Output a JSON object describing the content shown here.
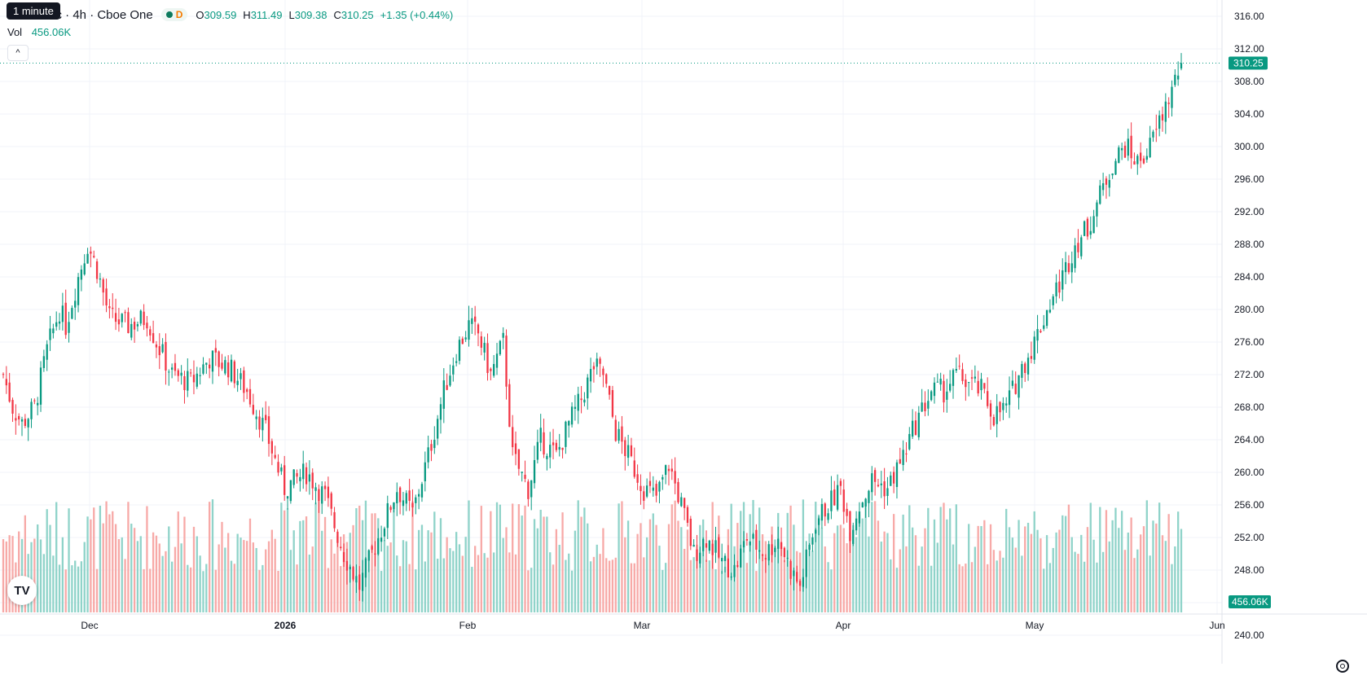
{
  "header": {
    "symbol_title": "Inc · 4h · Cboe One",
    "market_status": "D",
    "ohlc": {
      "o_label": "O",
      "o_value": "309.59",
      "h_label": "H",
      "h_value": "311.49",
      "l_label": "L",
      "l_value": "309.38",
      "c_label": "C",
      "c_value": "310.25"
    },
    "change": "+1.35 (+0.44%)",
    "tooltip": "1 minute",
    "volume_label": "Vol",
    "volume_value": "456.06K",
    "collapse_glyph": "^"
  },
  "toolbar": {
    "logo_text": "TV",
    "settings_icon": "gear-icon"
  },
  "colors": {
    "up": "#089981",
    "down": "#f23645",
    "vol_up": "#8fd3c9",
    "vol_down": "#f7a9a7",
    "grid": "#f0f3fa",
    "text": "#131722"
  },
  "chart_data": {
    "type": "candlestick",
    "interval": "4h",
    "ylim": [
      236.5,
      318
    ],
    "y_ticks": [
      "316.00",
      "312.00",
      "308.00",
      "304.00",
      "300.00",
      "296.00",
      "292.00",
      "288.00",
      "284.00",
      "280.00",
      "276.00",
      "272.00",
      "268.00",
      "264.00",
      "260.00",
      "256.00",
      "252.00",
      "248.00",
      "244.00",
      "240.00"
    ],
    "x_ticks": [
      "Dec",
      "2026",
      "Feb",
      "Mar",
      "Apr",
      "May",
      "Jun"
    ],
    "last_price": "310.25",
    "last_volume": "456.06K",
    "waypoints": [
      [
        0,
        272
      ],
      [
        3,
        268
      ],
      [
        6,
        266
      ],
      [
        10,
        268
      ],
      [
        14,
        275
      ],
      [
        18,
        280
      ],
      [
        20,
        278
      ],
      [
        24,
        284
      ],
      [
        27,
        288
      ],
      [
        30,
        285
      ],
      [
        34,
        279
      ],
      [
        40,
        278
      ],
      [
        46,
        279
      ],
      [
        49,
        276
      ],
      [
        54,
        272
      ],
      [
        60,
        271
      ],
      [
        66,
        274
      ],
      [
        72,
        273
      ],
      [
        78,
        270
      ],
      [
        84,
        265
      ],
      [
        90,
        258
      ],
      [
        97,
        260
      ],
      [
        103,
        257
      ],
      [
        109,
        250
      ],
      [
        114,
        246
      ],
      [
        118,
        250
      ],
      [
        122,
        254
      ],
      [
        126,
        258
      ],
      [
        131,
        255
      ],
      [
        136,
        262
      ],
      [
        141,
        270
      ],
      [
        145,
        275
      ],
      [
        149,
        278
      ],
      [
        152,
        277
      ],
      [
        156,
        272
      ],
      [
        160,
        276
      ],
      [
        163,
        262
      ],
      [
        168,
        258
      ],
      [
        172,
        264
      ],
      [
        177,
        262
      ],
      [
        181,
        266
      ],
      [
        185,
        269
      ],
      [
        189,
        273
      ],
      [
        192,
        272
      ],
      [
        196,
        265
      ],
      [
        200,
        262
      ],
      [
        205,
        258
      ],
      [
        209,
        257
      ],
      [
        213,
        261
      ],
      [
        217,
        256
      ],
      [
        221,
        250
      ],
      [
        225,
        252
      ],
      [
        230,
        249
      ],
      [
        234,
        248
      ],
      [
        238,
        252
      ],
      [
        244,
        250
      ],
      [
        248,
        252
      ],
      [
        252,
        248
      ],
      [
        255,
        246
      ],
      [
        260,
        254
      ],
      [
        264,
        256
      ],
      [
        268,
        258
      ],
      [
        271,
        253
      ],
      [
        274,
        256
      ],
      [
        278,
        259
      ],
      [
        283,
        258
      ],
      [
        288,
        262
      ],
      [
        292,
        266
      ],
      [
        297,
        270
      ],
      [
        301,
        270
      ],
      [
        305,
        272
      ],
      [
        309,
        271
      ],
      [
        313,
        270
      ],
      [
        317,
        267
      ],
      [
        321,
        268
      ],
      [
        325,
        272
      ],
      [
        330,
        276
      ],
      [
        334,
        280
      ],
      [
        339,
        284
      ],
      [
        343,
        288
      ],
      [
        347,
        290
      ],
      [
        351,
        294
      ],
      [
        355,
        298
      ],
      [
        359,
        300
      ],
      [
        363,
        298
      ],
      [
        367,
        300
      ],
      [
        371,
        304
      ],
      [
        374,
        307
      ],
      [
        377,
        310.25
      ]
    ],
    "volume_max": 30
  }
}
